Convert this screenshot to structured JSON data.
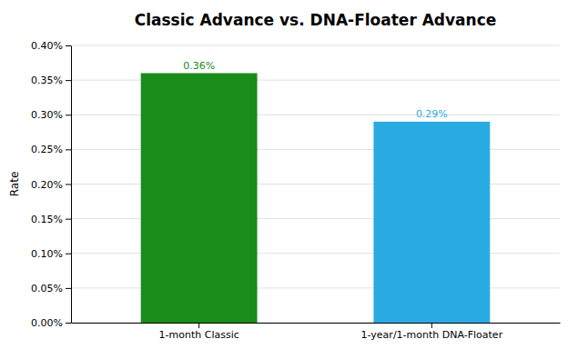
{
  "chart_data": {
    "type": "bar",
    "title": "Classic Advance vs. DNA-Floater Advance",
    "categories": [
      "1-month Classic",
      "1-year/1-month DNA-Floater"
    ],
    "values": [
      0.0036,
      0.0029
    ],
    "value_labels": [
      "0.36%",
      "0.29%"
    ],
    "colors": [
      "#1a8c1a",
      "#29abe2"
    ],
    "ylabel": "Rate",
    "ylim": [
      0,
      0.004
    ],
    "yticks": [
      {
        "value": 0,
        "label": "0.00%"
      },
      {
        "value": 0.0005,
        "label": "0.05%"
      },
      {
        "value": 0.001,
        "label": "0.10%"
      },
      {
        "value": 0.0015,
        "label": "0.15%"
      },
      {
        "value": 0.002,
        "label": "0.20%"
      },
      {
        "value": 0.0025,
        "label": "0.25%"
      },
      {
        "value": 0.003,
        "label": "0.30%"
      },
      {
        "value": 0.0035,
        "label": "0.35%"
      },
      {
        "value": 0.004,
        "label": "0.40%"
      }
    ],
    "grid": true,
    "data_labels": true
  }
}
